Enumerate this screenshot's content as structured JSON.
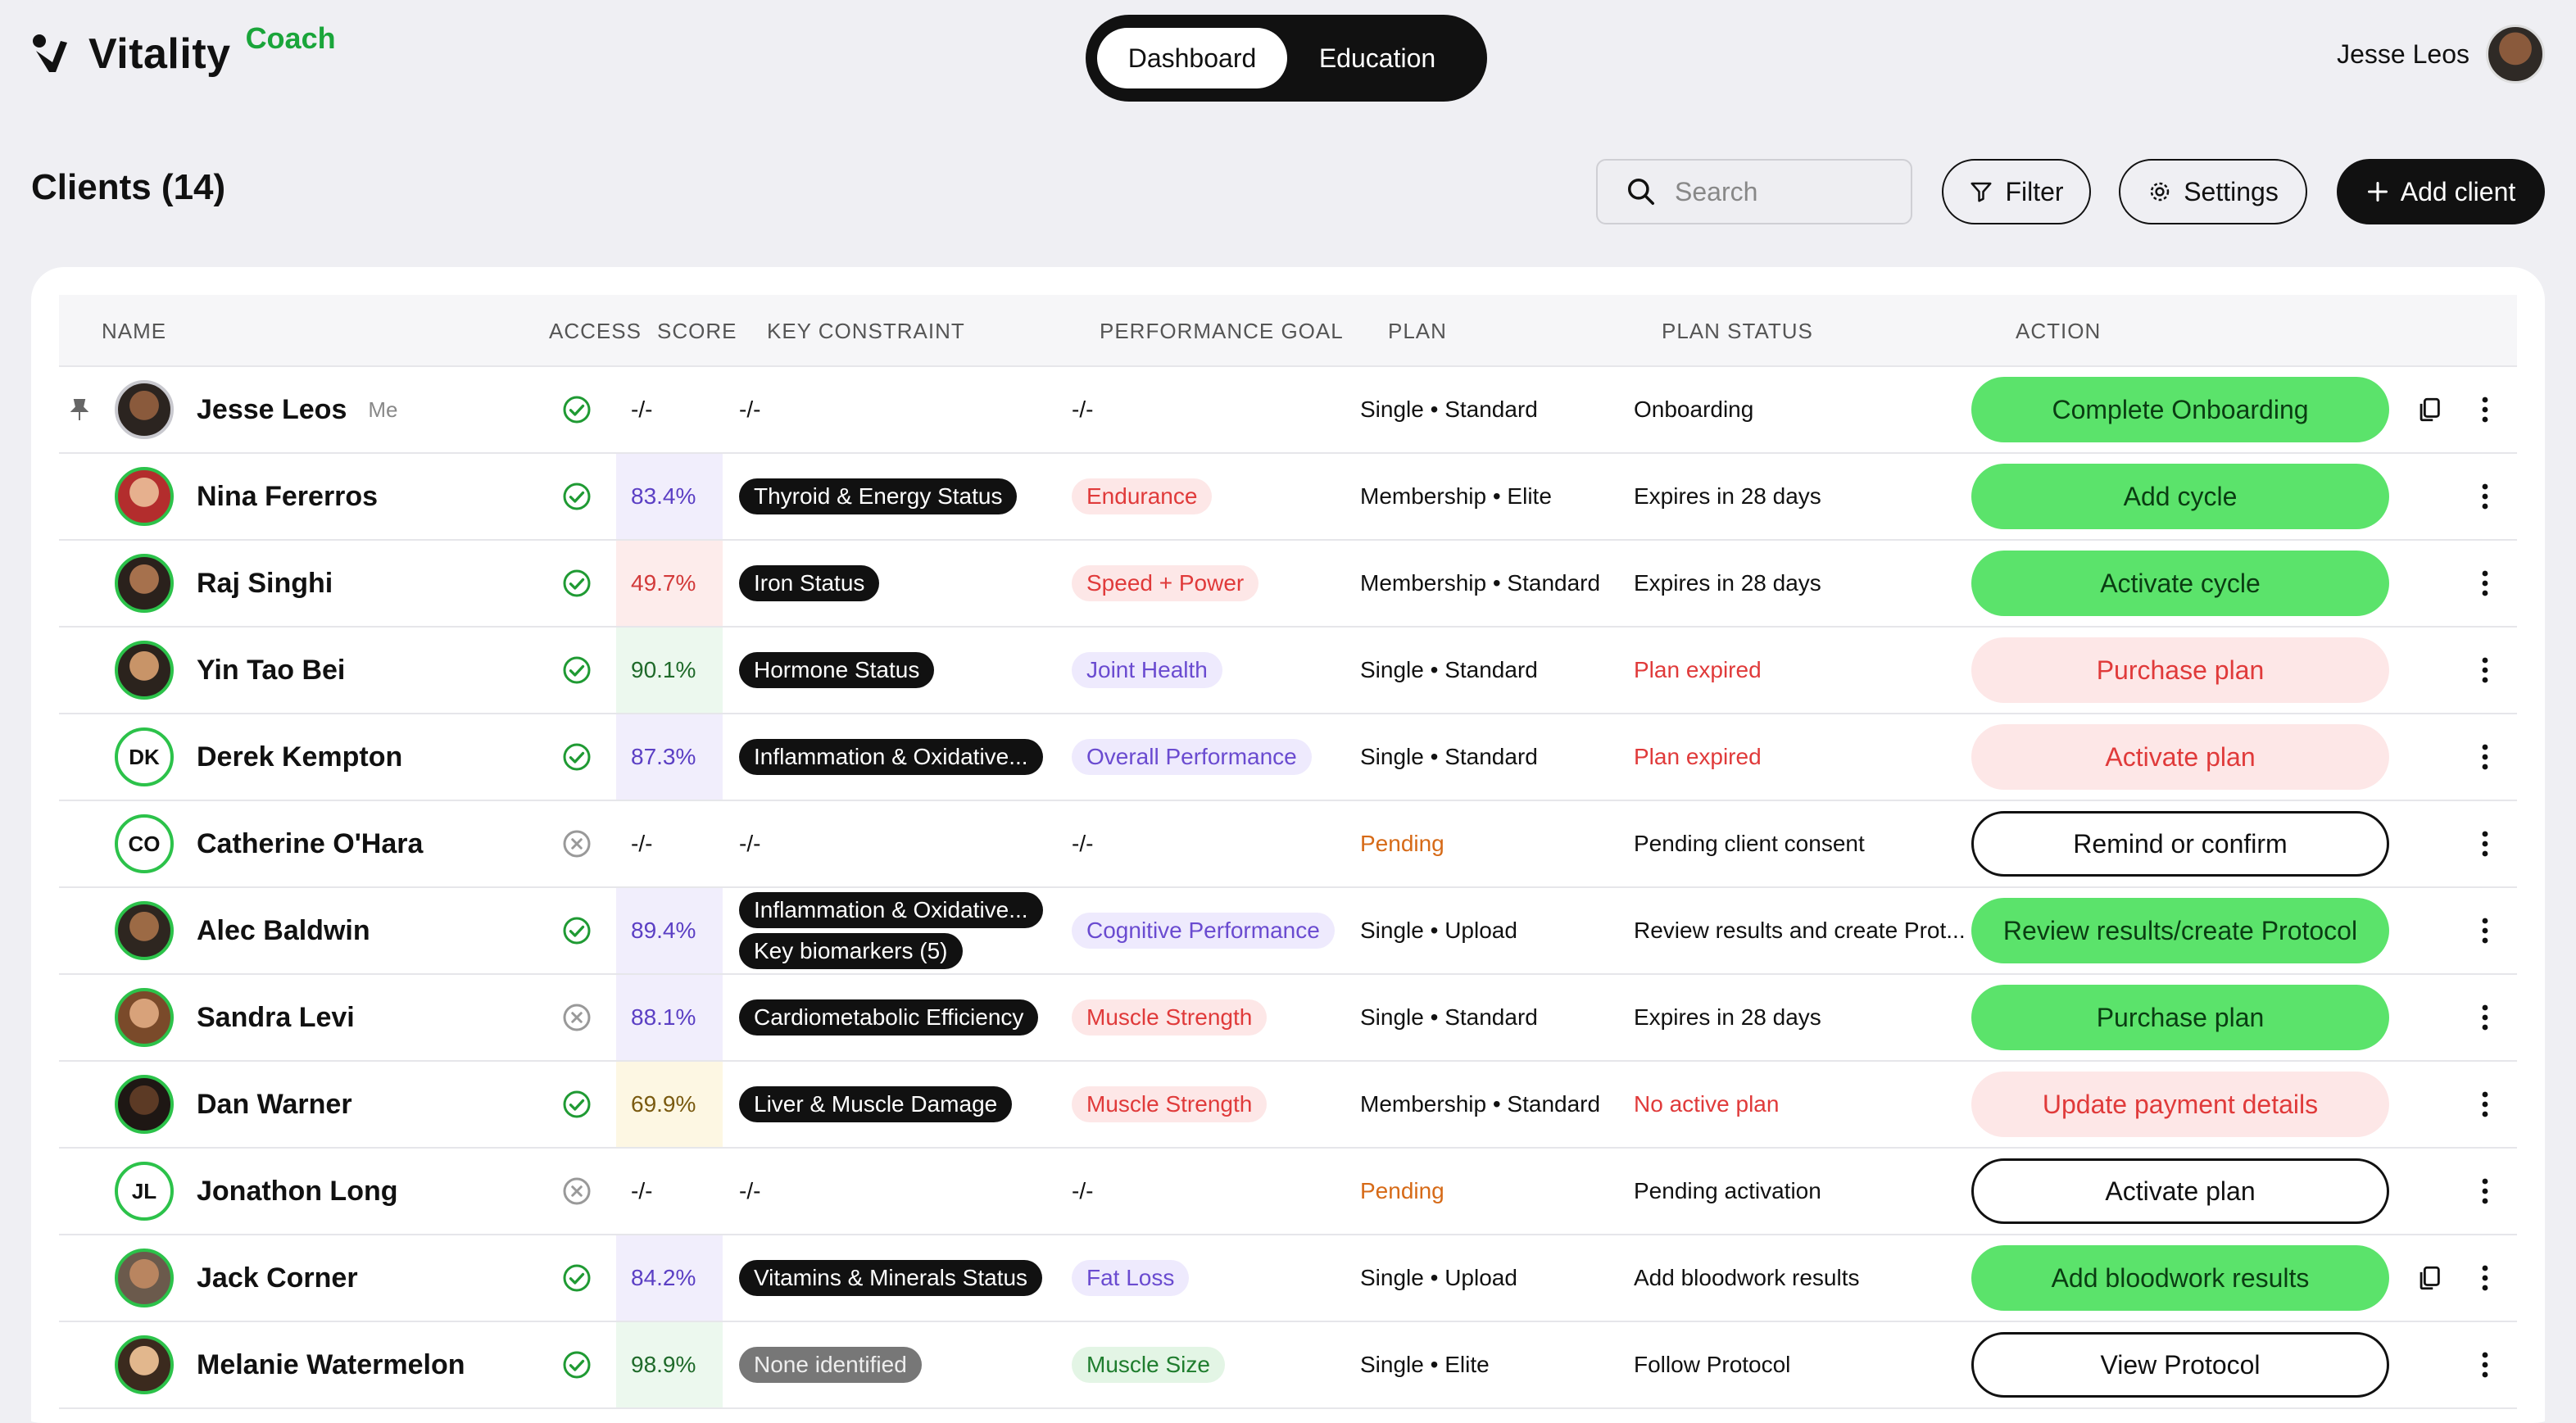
{
  "app": {
    "name": "Vitality",
    "badge": "Coach"
  },
  "nav_tabs": [
    "Dashboard",
    "Education"
  ],
  "user": {
    "name": "Jesse Leos"
  },
  "page_title": "Clients (14)",
  "toolbar": {
    "search_placeholder": "Search",
    "filter_label": "Filter",
    "settings_label": "Settings",
    "add_label": "Add client"
  },
  "columns": [
    "NAME",
    "ACCESS",
    "SCORE",
    "KEY CONSTRAINT",
    "PERFORMANCE GOAL",
    "PLAN",
    "PLAN STATUS",
    "ACTION"
  ],
  "colors": {
    "accent_green": "#5be36b",
    "danger_red": "#e03a3a",
    "pending_orange": "#d66a17"
  },
  "rows": [
    {
      "name": "Jesse Leos",
      "me": "Me",
      "initials": "",
      "access": "check",
      "score": "-/-",
      "constraints": [
        "-/-"
      ],
      "goal": "-/-",
      "goal_style": "none",
      "plan": "Single • Standard",
      "status": "Onboarding",
      "status_style": "",
      "action": "Complete Onboarding",
      "action_style": "green",
      "copy": true,
      "pinned": true
    },
    {
      "name": "Nina Fererros",
      "initials": "",
      "access": "check",
      "score": "83.4%",
      "constraints": [
        "Thyroid & Energy Status"
      ],
      "goal": "Endurance",
      "goal_style": "red",
      "plan": "Membership • Elite",
      "status": "Expires in 28 days",
      "status_style": "",
      "action": "Add cycle",
      "action_style": "green"
    },
    {
      "name": "Raj Singhi",
      "initials": "",
      "access": "check",
      "score": "49.7%",
      "constraints": [
        "Iron Status"
      ],
      "goal": "Speed + Power",
      "goal_style": "red",
      "plan": "Membership • Standard",
      "status": "Expires in 28 days",
      "status_style": "",
      "action": "Activate cycle",
      "action_style": "green"
    },
    {
      "name": "Yin Tao Bei",
      "initials": "",
      "access": "check",
      "score": "90.1%",
      "constraints": [
        "Hormone Status"
      ],
      "goal": "Joint Health",
      "goal_style": "purple",
      "plan": "Single • Standard",
      "status": "Plan expired",
      "status_style": "red",
      "action": "Purchase plan",
      "action_style": "pink"
    },
    {
      "name": "Derek Kempton",
      "initials": "DK",
      "access": "check",
      "score": "87.3%",
      "constraints": [
        "Inflammation & Oxidative..."
      ],
      "goal": "Overall Performance",
      "goal_style": "purple",
      "plan": "Single • Standard",
      "status": "Plan expired",
      "status_style": "red",
      "action": "Activate plan",
      "action_style": "pink"
    },
    {
      "name": "Catherine O'Hara",
      "initials": "CO",
      "access": "x",
      "score": "-/-",
      "constraints": [
        "-/-"
      ],
      "goal": "-/-",
      "goal_style": "none",
      "plan": "Pending",
      "plan_style": "orange",
      "status": "Pending client consent",
      "status_style": "",
      "action": "Remind or confirm",
      "action_style": "outline"
    },
    {
      "name": "Alec Baldwin",
      "initials": "",
      "access": "check",
      "score": "89.4%",
      "constraints": [
        "Inflammation & Oxidative...",
        "Key biomarkers (5)"
      ],
      "goal": "Cognitive Performance",
      "goal_style": "purple",
      "plan": "Single • Upload",
      "status": "Review results and create Prot...",
      "status_style": "",
      "action": "Review results/create Protocol",
      "action_style": "green"
    },
    {
      "name": "Sandra Levi",
      "initials": "",
      "access": "x",
      "score": "88.1%",
      "constraints": [
        "Cardiometabolic Efficiency"
      ],
      "goal": "Muscle Strength",
      "goal_style": "red",
      "plan": "Single • Standard",
      "status": "Expires in 28 days",
      "status_style": "",
      "action": "Purchase plan",
      "action_style": "green"
    },
    {
      "name": "Dan Warner",
      "initials": "",
      "access": "check",
      "score": "69.9%",
      "constraints": [
        "Liver & Muscle Damage"
      ],
      "goal": "Muscle Strength",
      "goal_style": "red",
      "plan": "Membership • Standard",
      "status": "No active plan",
      "status_style": "red",
      "action": "Update payment details",
      "action_style": "pink"
    },
    {
      "name": "Jonathon Long",
      "initials": "JL",
      "access": "x",
      "score": "-/-",
      "constraints": [
        "-/-"
      ],
      "goal": "-/-",
      "goal_style": "none",
      "plan": "Pending",
      "plan_style": "orange",
      "status": "Pending activation",
      "status_style": "",
      "action": "Activate plan",
      "action_style": "outline"
    },
    {
      "name": "Jack Corner",
      "initials": "",
      "access": "check",
      "score": "84.2%",
      "constraints": [
        "Vitamins & Minerals Status"
      ],
      "goal": "Fat Loss",
      "goal_style": "purple",
      "plan": "Single • Upload",
      "status": "Add bloodwork results",
      "status_style": "",
      "action": "Add bloodwork results",
      "action_style": "green",
      "copy": true
    },
    {
      "name": "Melanie Watermelon",
      "initials": "",
      "access": "check",
      "score": "98.9%",
      "constraints": [
        "None identified"
      ],
      "constraint_style": "gray",
      "goal": "Muscle Size",
      "goal_style": "green",
      "plan": "Single • Elite",
      "status": "Follow Protocol",
      "status_style": "",
      "action": "View Protocol",
      "action_style": "outline"
    }
  ]
}
